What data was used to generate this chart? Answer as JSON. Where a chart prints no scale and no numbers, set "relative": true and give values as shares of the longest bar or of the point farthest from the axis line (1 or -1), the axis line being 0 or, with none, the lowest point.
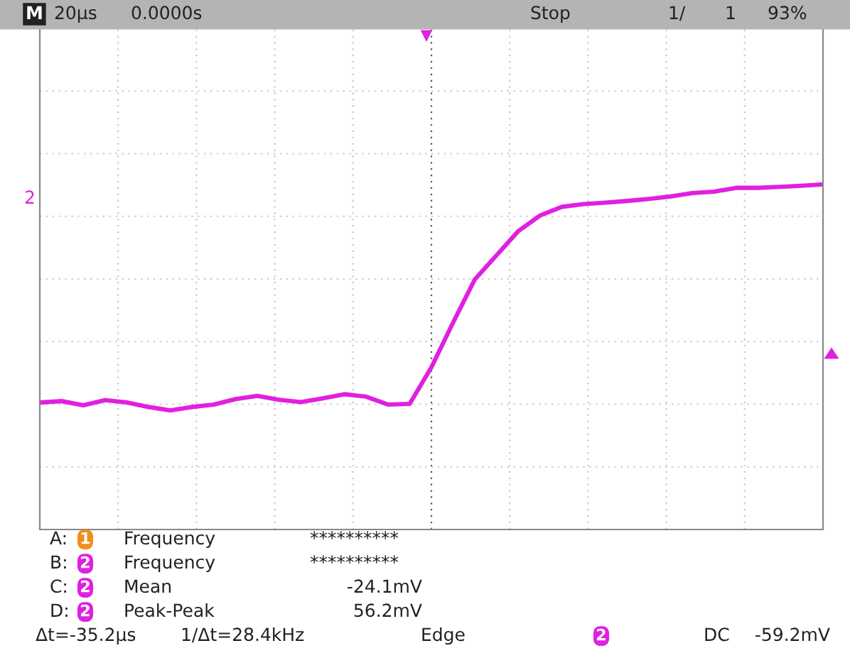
{
  "chart_data": {
    "type": "line",
    "relative": true,
    "grid": true,
    "categories": [
      null,
      null,
      null,
      null,
      null,
      null,
      null,
      null,
      null,
      null,
      null,
      null,
      null,
      null,
      null,
      null,
      null,
      null,
      null,
      null,
      null,
      null,
      null,
      null,
      null,
      null,
      null,
      null,
      null,
      null,
      null,
      null,
      null,
      null,
      null,
      null,
      null
    ],
    "series": [
      {
        "color": "#e020e0",
        "values": [
          0.368,
          0.372,
          0.36,
          0.375,
          0.368,
          0.355,
          0.345,
          0.355,
          0.362,
          0.378,
          0.387,
          0.376,
          0.369,
          0.38,
          0.392,
          0.385,
          0.362,
          0.364,
          0.47,
          0.6,
          0.725,
          0.795,
          0.865,
          0.91,
          0.935,
          0.943,
          0.947,
          0.952,
          0.958,
          0.965,
          0.975,
          0.979,
          0.99,
          0.99,
          0.993,
          0.996,
          1.0
        ]
      }
    ],
    "annotations": [
      "M",
      "20µs",
      "0.0000s",
      "Stop",
      "1/",
      "1",
      "93%",
      "A:",
      "1",
      "Frequency",
      "**********",
      "B:",
      "2",
      "Frequency",
      "**********",
      "C:",
      "2",
      "Mean",
      "-24.1mV",
      "D:",
      "2",
      "Peak-Peak",
      "56.2mV",
      "Δt=-35.2µs",
      "1/Δt=28.4kHz",
      "Edge",
      "2",
      "DC",
      "-59.2mV",
      "2"
    ]
  }
}
